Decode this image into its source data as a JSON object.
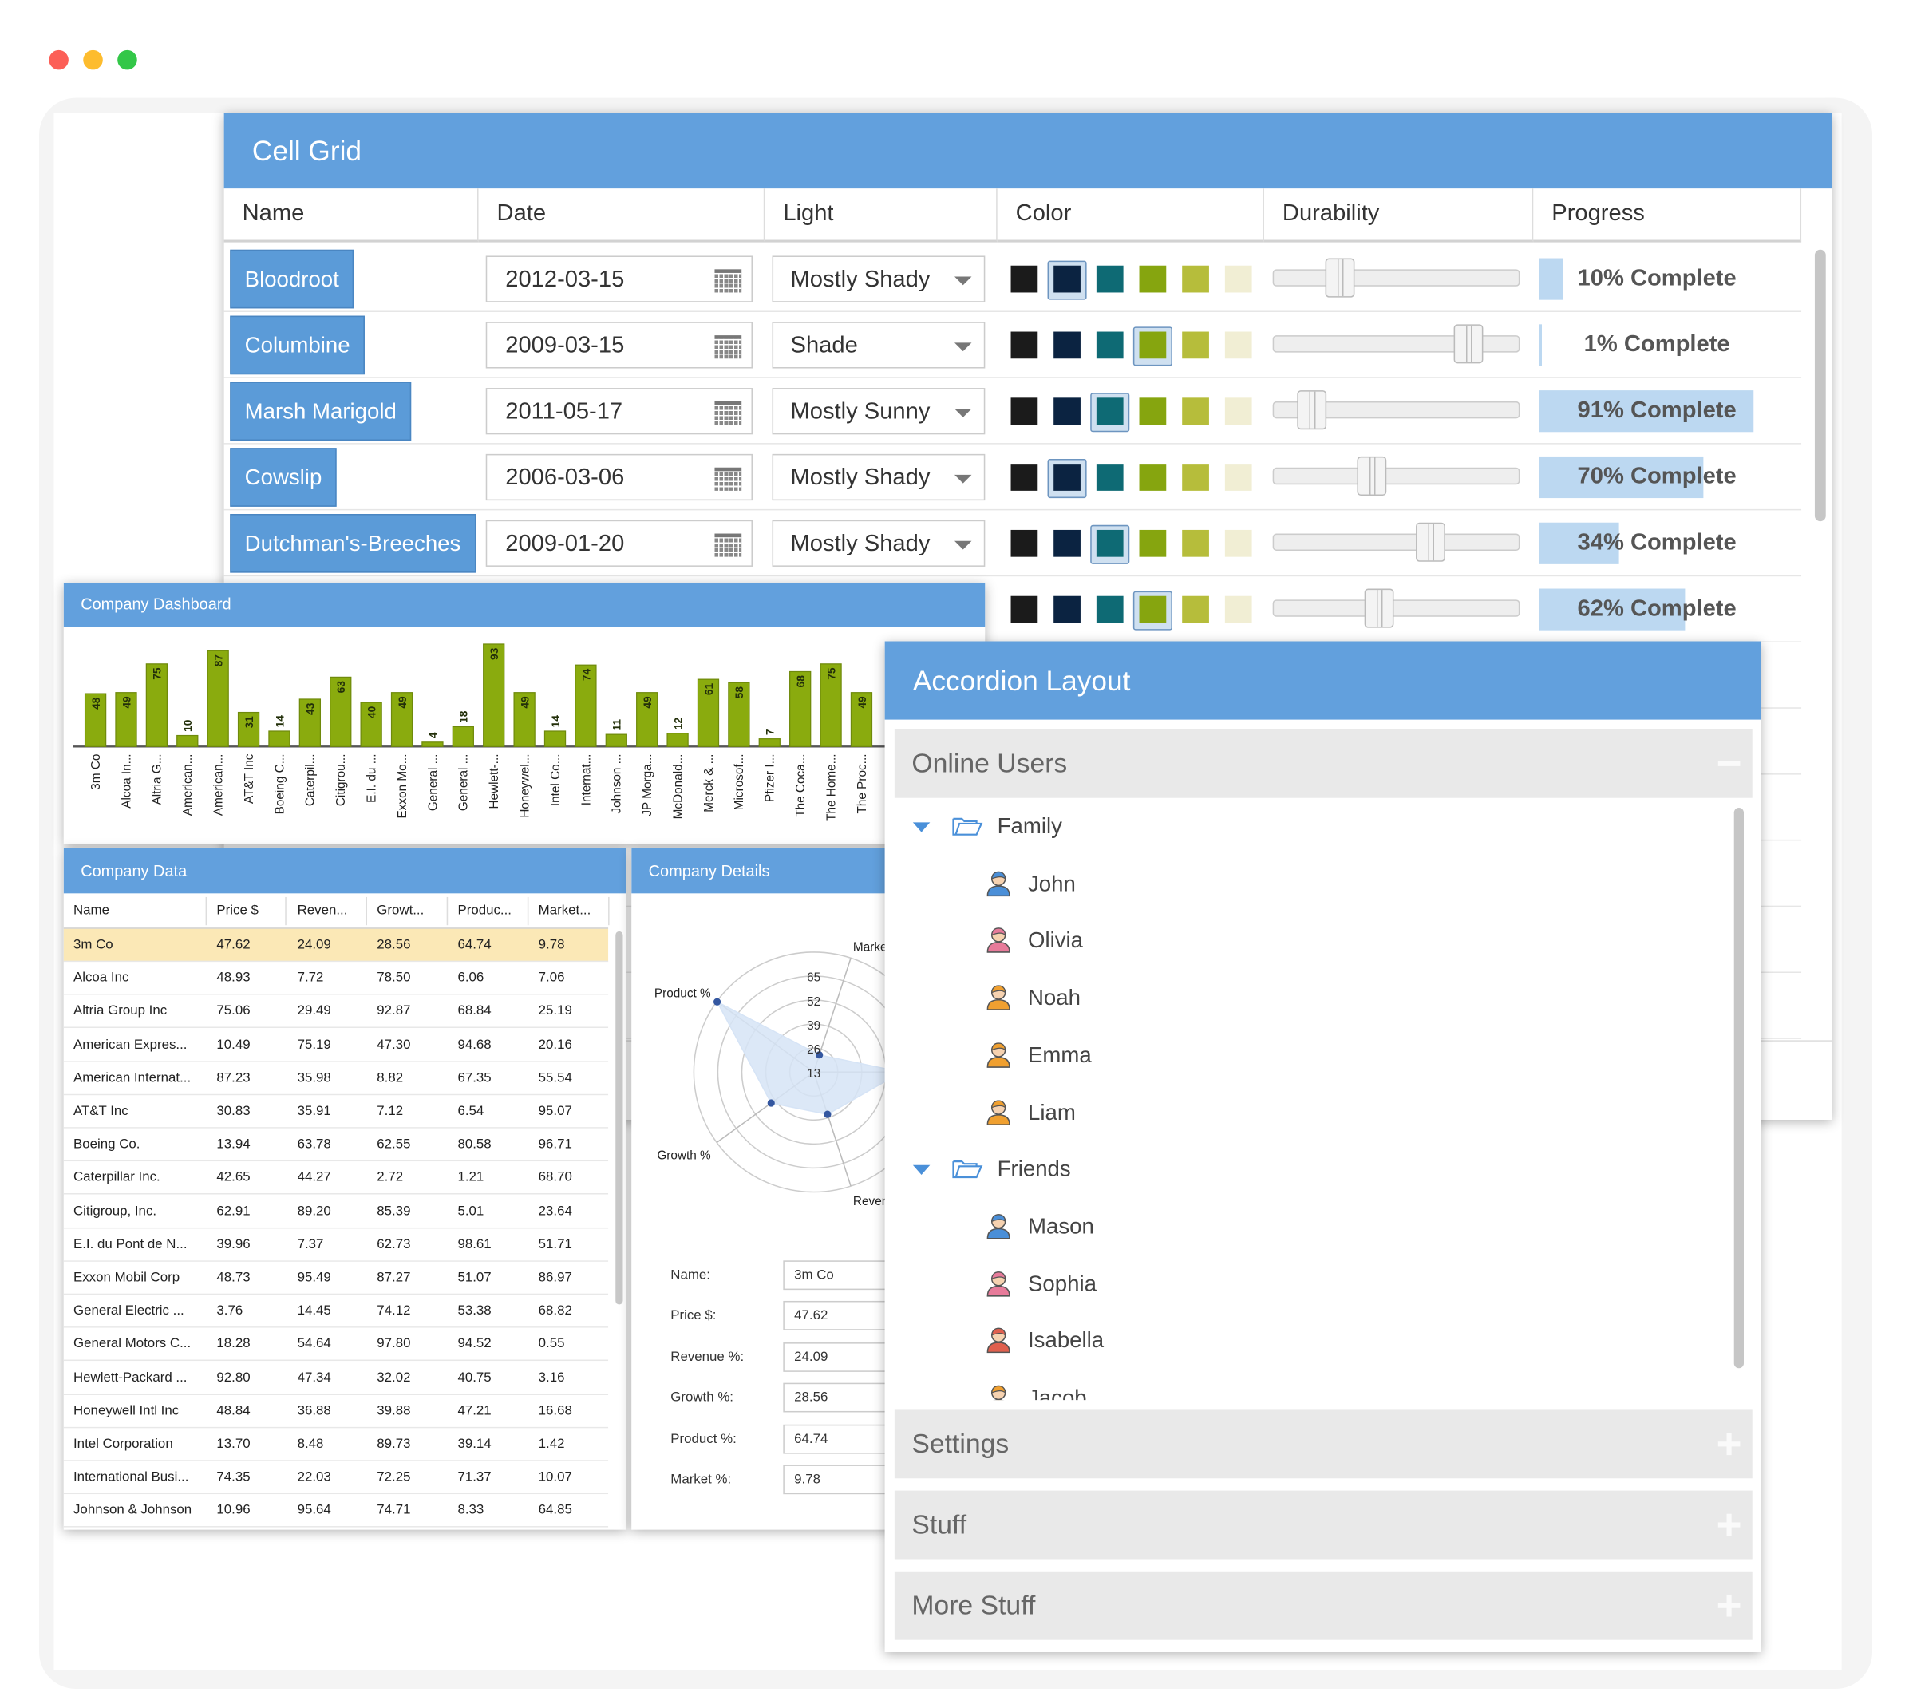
{
  "cell_grid": {
    "title": "Cell Grid",
    "columns": [
      "Name",
      "Date",
      "Light",
      "Color",
      "Durability",
      "Progress"
    ],
    "swatches": [
      "#1b1b1b",
      "#0b2341",
      "#0e6a74",
      "#86a50f",
      "#b6bd3b",
      "#f1eed4"
    ],
    "rows": [
      {
        "name": "Bloodroot",
        "date": "2012-03-15",
        "light": "Mostly Shady",
        "color": 1,
        "durability": 27,
        "progress": 10,
        "progress_label": "10% Complete"
      },
      {
        "name": "Columbine",
        "date": "2009-03-15",
        "light": "Shade",
        "color": 3,
        "durability": 79,
        "progress": 1,
        "progress_label": "1% Complete"
      },
      {
        "name": "Marsh Marigold",
        "date": "2011-05-17",
        "light": "Mostly Sunny",
        "color": 2,
        "durability": 16,
        "progress": 91,
        "progress_label": "91% Complete"
      },
      {
        "name": "Cowslip",
        "date": "2006-03-06",
        "light": "Mostly Shady",
        "color": 1,
        "durability": 40,
        "progress": 70,
        "progress_label": "70% Complete"
      },
      {
        "name": "Dutchman's-Breeches",
        "date": "2009-01-20",
        "light": "Mostly Shady",
        "color": 2,
        "durability": 64,
        "progress": 34,
        "progress_label": "34% Complete"
      },
      {
        "color": 3,
        "durability": 43,
        "progress": 62,
        "progress_label": "62% Complete"
      }
    ]
  },
  "dashboard": {
    "title": "Company Dashboard",
    "chart_data": {
      "type": "bar",
      "categories": [
        "3m Co",
        "Alcoa In...",
        "Altria G...",
        "American...",
        "American...",
        "AT&T Inc",
        "Boeing C...",
        "Caterpil...",
        "Citigrou...",
        "E.I. du ...",
        "Exxon Mo...",
        "General ...",
        "General ...",
        "Hewlett-...",
        "Honeywel...",
        "Intel Co...",
        "Internat...",
        "Johnson ...",
        "JP Morga...",
        "McDonald...",
        "Merck & ...",
        "Microsof...",
        "Pfizer I...",
        "The Coca...",
        "The Home...",
        "The Proc..."
      ],
      "values": [
        48,
        49,
        75,
        10,
        87,
        31,
        14,
        43,
        63,
        40,
        49,
        4,
        18,
        93,
        49,
        14,
        74,
        11,
        49,
        12,
        61,
        58,
        7,
        68,
        75,
        49
      ],
      "color": "#8aab0e",
      "ylim": [
        0,
        100
      ]
    }
  },
  "company_data": {
    "title": "Company Data",
    "columns": [
      "Name",
      "Price $",
      "Reven...",
      "Growt...",
      "Produc...",
      "Market..."
    ],
    "rows": [
      [
        "3m Co",
        "47.62",
        "24.09",
        "28.56",
        "64.74",
        "9.78"
      ],
      [
        "Alcoa Inc",
        "48.93",
        "7.72",
        "78.50",
        "6.06",
        "7.06"
      ],
      [
        "Altria Group Inc",
        "75.06",
        "29.49",
        "92.87",
        "68.84",
        "25.19"
      ],
      [
        "American Expres...",
        "10.49",
        "75.19",
        "47.30",
        "94.68",
        "20.16"
      ],
      [
        "American Internat...",
        "87.23",
        "35.98",
        "8.82",
        "67.35",
        "55.54"
      ],
      [
        "AT&T Inc",
        "30.83",
        "35.91",
        "7.12",
        "6.54",
        "95.07"
      ],
      [
        "Boeing Co.",
        "13.94",
        "63.78",
        "62.55",
        "80.58",
        "96.71"
      ],
      [
        "Caterpillar Inc.",
        "42.65",
        "44.27",
        "2.72",
        "1.21",
        "68.70"
      ],
      [
        "Citigroup, Inc.",
        "62.91",
        "89.20",
        "85.39",
        "5.01",
        "23.64"
      ],
      [
        "E.I. du Pont de N...",
        "39.96",
        "7.37",
        "62.73",
        "98.61",
        "51.71"
      ],
      [
        "Exxon Mobil Corp",
        "48.73",
        "95.49",
        "87.27",
        "51.07",
        "86.97"
      ],
      [
        "General Electric ...",
        "3.76",
        "14.45",
        "74.12",
        "53.38",
        "68.82"
      ],
      [
        "General Motors C...",
        "18.28",
        "54.64",
        "97.80",
        "94.52",
        "0.55"
      ],
      [
        "Hewlett-Packard ...",
        "92.80",
        "47.34",
        "32.02",
        "40.75",
        "3.16"
      ],
      [
        "Honeywell Intl Inc",
        "48.84",
        "36.88",
        "39.88",
        "47.21",
        "16.68"
      ],
      [
        "Intel Corporation",
        "13.70",
        "8.48",
        "89.73",
        "39.14",
        "1.42"
      ],
      [
        "International Busi...",
        "74.35",
        "22.03",
        "72.25",
        "71.37",
        "10.07"
      ],
      [
        "Johnson & Johnson",
        "10.96",
        "95.64",
        "74.71",
        "8.33",
        "64.85"
      ]
    ],
    "selected_row": 0
  },
  "company_details": {
    "title": "Company Details",
    "radar": {
      "type": "radar",
      "axes": [
        null,
        "Revenue %",
        "Growth %",
        "Product %",
        "Market %"
      ],
      "rlim": [
        0,
        65
      ],
      "rticks": [
        13,
        26,
        39,
        52,
        65
      ],
      "color": "#3457a0",
      "fill": "#d6e4f6"
    },
    "form_labels": [
      "Name:",
      "Price $:",
      "Revenue %:",
      "Growth %:",
      "Product %:",
      "Market %:"
    ]
  },
  "accordion": {
    "title": "Accordion Layout",
    "sections": [
      {
        "title": "Online Users",
        "expanded": true,
        "groups": [
          {
            "name": "Family",
            "users": [
              {
                "name": "John",
                "color": "#4a8fd8"
              },
              {
                "name": "Olivia",
                "color": "#e77b9a"
              },
              {
                "name": "Noah",
                "color": "#f0a030"
              },
              {
                "name": "Emma",
                "color": "#f0a030"
              },
              {
                "name": "Liam",
                "color": "#f0a030"
              }
            ]
          },
          {
            "name": "Friends",
            "users": [
              {
                "name": "Mason",
                "color": "#4a8fd8"
              },
              {
                "name": "Sophia",
                "color": "#e77b9a"
              },
              {
                "name": "Isabella",
                "color": "#e0604e"
              },
              {
                "name": "Jacob",
                "color": "#f0a030"
              }
            ]
          }
        ]
      },
      {
        "title": "Settings",
        "expanded": false
      },
      {
        "title": "Stuff",
        "expanded": false
      },
      {
        "title": "More Stuff",
        "expanded": false
      }
    ]
  }
}
